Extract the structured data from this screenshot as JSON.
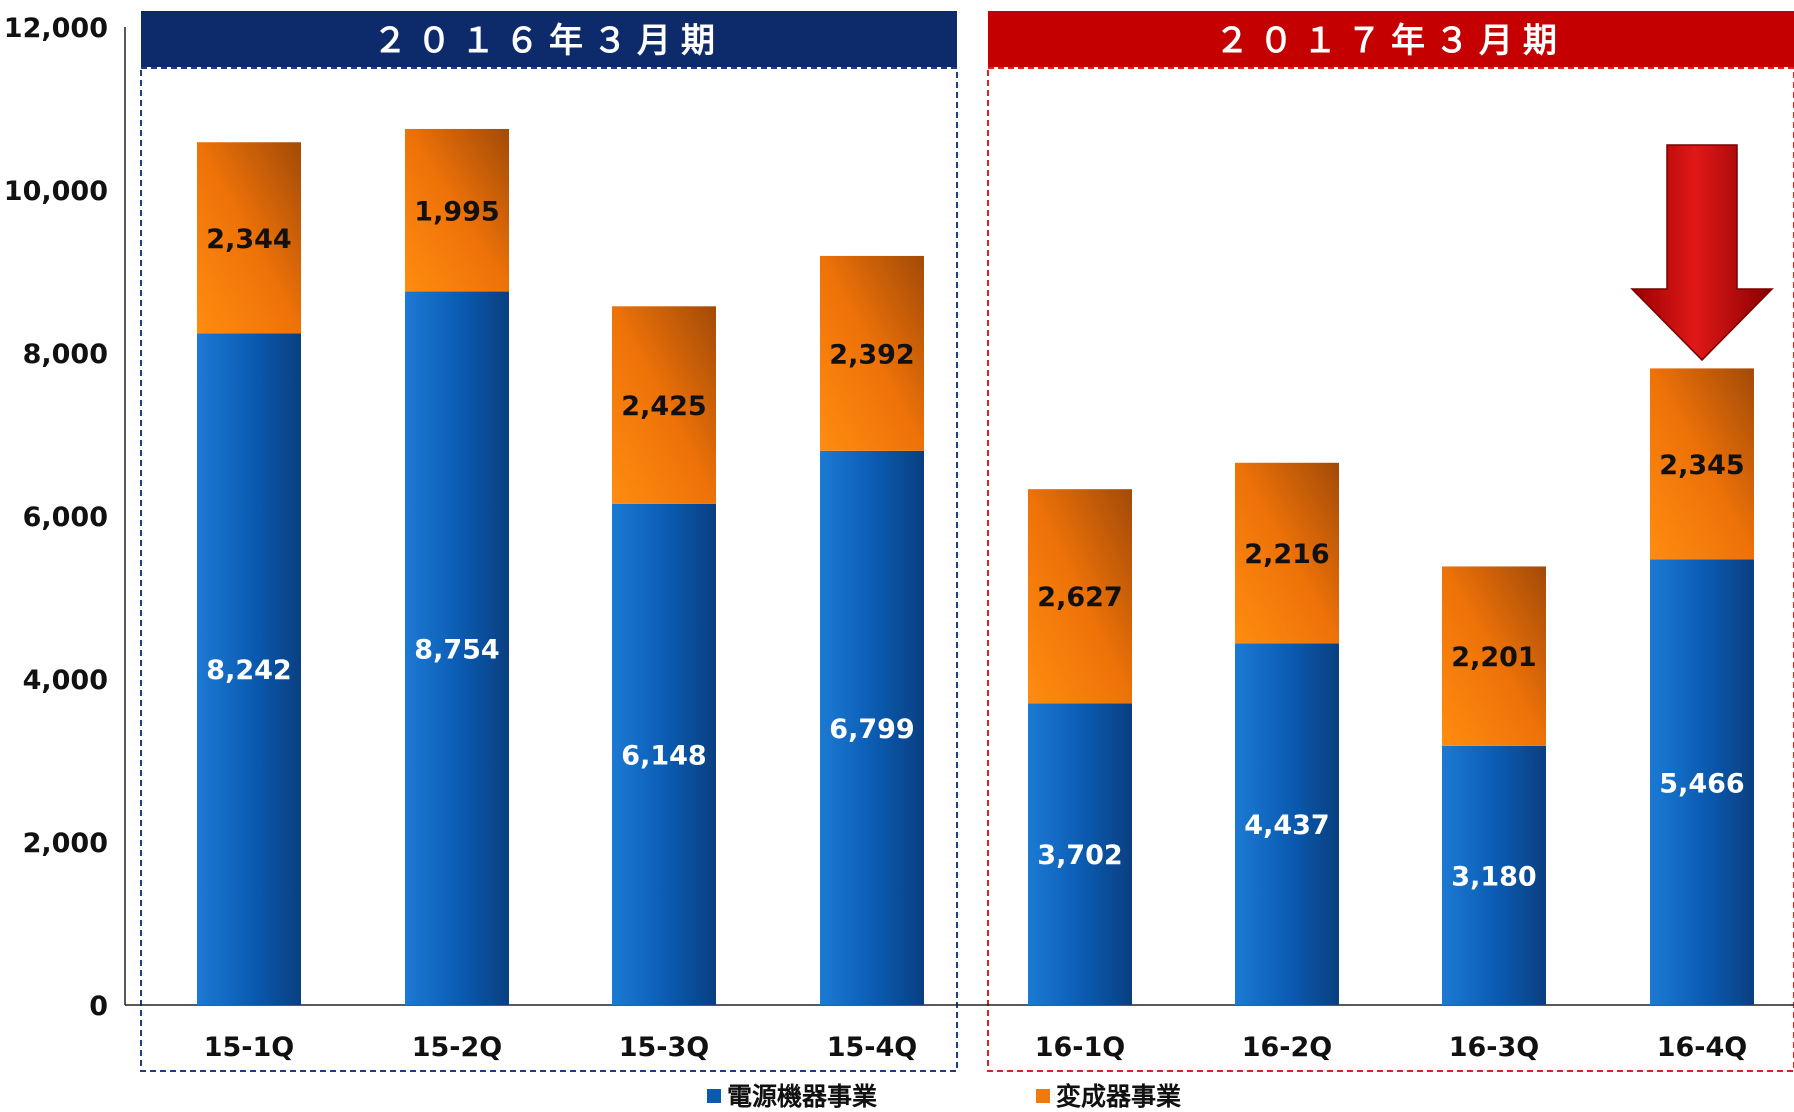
{
  "chart_data": {
    "type": "bar",
    "stacked": true,
    "categories": [
      "15-1Q",
      "15-2Q",
      "15-3Q",
      "15-4Q",
      "16-1Q",
      "16-2Q",
      "16-3Q",
      "16-4Q"
    ],
    "series": [
      {
        "name": "電源機器事業",
        "color": "#0a5ab0",
        "label_color": "#ffffff",
        "values": [
          8242,
          8754,
          6148,
          6799,
          3702,
          4437,
          3180,
          5466
        ]
      },
      {
        "name": "変成器事業",
        "color": "#f07a10",
        "label_color": "#111111",
        "values": [
          2344,
          1995,
          2425,
          2392,
          2627,
          2216,
          2201,
          2345
        ]
      }
    ],
    "value_labels": [
      [
        "8,242",
        "8,754",
        "6,148",
        "6,799",
        "3,702",
        "4,437",
        "3,180",
        "5,466"
      ],
      [
        "2,344",
        "1,995",
        "2,425",
        "2,392",
        "2,627",
        "2,216",
        "2,201",
        "2,345"
      ]
    ],
    "ylim": [
      0,
      12000
    ],
    "yticks": [
      0,
      2000,
      4000,
      6000,
      8000,
      10000,
      12000
    ],
    "ytick_labels": [
      "0",
      "2,000",
      "4,000",
      "6,000",
      "8,000",
      "10,000",
      "12,000"
    ],
    "groups": [
      {
        "title": "２０１６年３月期",
        "categories": [
          "15-1Q",
          "15-2Q",
          "15-3Q",
          "15-4Q"
        ],
        "header_color": "#0d2a6b",
        "border_color": "#1f3d82"
      },
      {
        "title": "２０１７年３月期",
        "categories": [
          "16-1Q",
          "16-2Q",
          "16-3Q",
          "16-4Q"
        ],
        "header_color": "#c40000",
        "border_color": "#e02020"
      }
    ],
    "annotation": {
      "shape": "down-arrow",
      "category": "16-4Q",
      "color": "#cc0000"
    },
    "grid": false,
    "legend": {
      "position": "bottom",
      "entries": [
        "電源機器事業",
        "変成器事業"
      ]
    },
    "xlabel": "",
    "ylabel": "",
    "title": ""
  }
}
